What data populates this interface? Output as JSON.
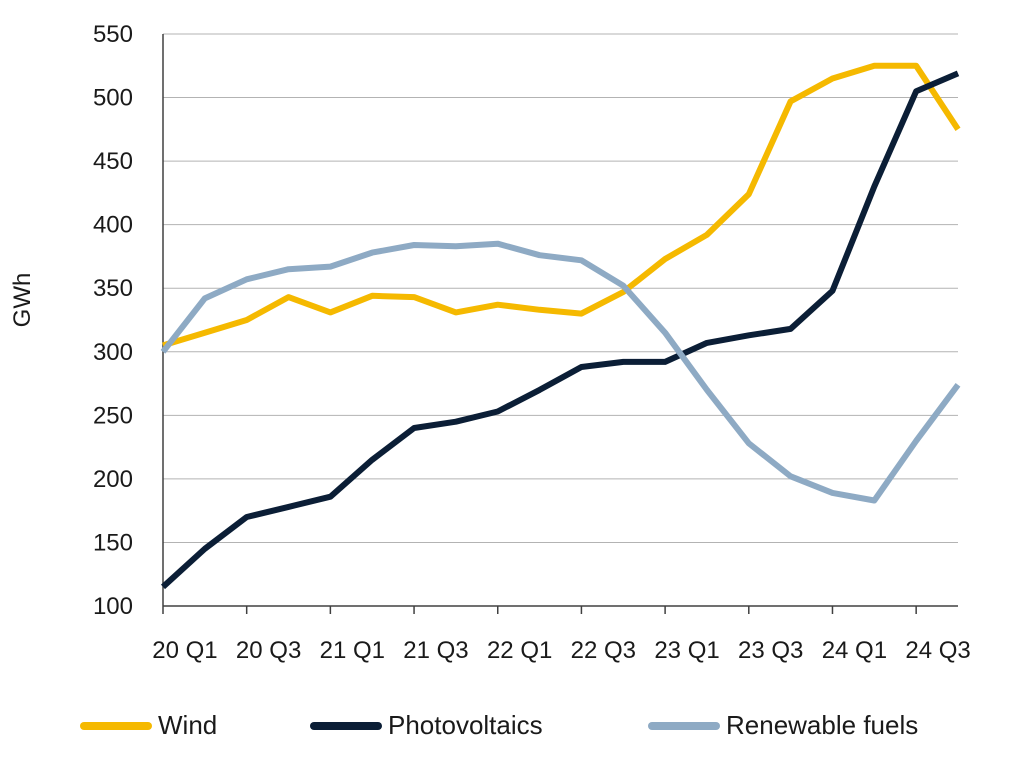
{
  "chart_data": {
    "type": "line",
    "title": "",
    "xlabel": "",
    "ylabel": "GWh",
    "ylim": [
      100,
      550
    ],
    "yticks": [
      "100",
      "150",
      "200",
      "250",
      "300",
      "350",
      "400",
      "450",
      "500",
      "550"
    ],
    "grid": "horizontal",
    "legend_position": "bottom",
    "categories": [
      "20 Q1",
      "20 Q2",
      "20 Q3",
      "20 Q4",
      "21 Q1",
      "21 Q2",
      "21 Q3",
      "21 Q4",
      "22 Q1",
      "22 Q2",
      "22 Q3",
      "22 Q4",
      "23 Q1",
      "23 Q2",
      "23 Q3",
      "23 Q4",
      "24 Q1",
      "24 Q2",
      "24 Q3",
      "24 Q4"
    ],
    "xtick_labels": [
      "20 Q1",
      "20 Q3",
      "21 Q1",
      "21 Q3",
      "22 Q1",
      "22 Q3",
      "23 Q1",
      "23 Q3",
      "24 Q1",
      "24 Q3"
    ],
    "series": [
      {
        "name": "Wind",
        "color": "#F5B900",
        "values": [
          305,
          315,
          325,
          343,
          331,
          344,
          343,
          331,
          337,
          333,
          330,
          347,
          373,
          392,
          424,
          497,
          515,
          525,
          525,
          475
        ]
      },
      {
        "name": "Photovoltaics",
        "color": "#0B1E36",
        "values": [
          115,
          145,
          170,
          178,
          186,
          215,
          240,
          245,
          253,
          270,
          288,
          292,
          292,
          307,
          313,
          318,
          348,
          430,
          505,
          519
        ]
      },
      {
        "name": "Renewable fuels",
        "color": "#8EAAC4",
        "values": [
          300,
          342,
          357,
          365,
          367,
          378,
          384,
          383,
          385,
          376,
          372,
          352,
          315,
          270,
          228,
          202,
          189,
          183,
          230,
          274
        ]
      }
    ]
  }
}
